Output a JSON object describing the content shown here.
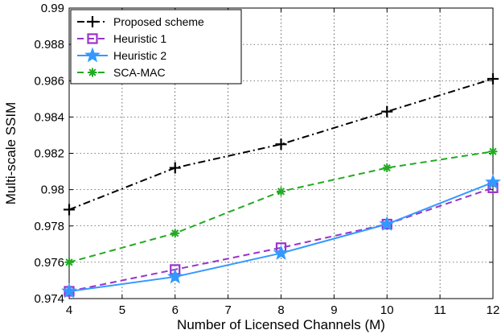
{
  "chart_data": {
    "type": "line",
    "title": "",
    "xlabel": "Number of Licensed Channels (M)",
    "ylabel": "Multi-scale SSIM",
    "xlim": [
      4,
      12
    ],
    "ylim": [
      0.974,
      0.99
    ],
    "x_ticks": [
      4,
      5,
      6,
      7,
      8,
      9,
      10,
      11,
      12
    ],
    "y_ticks": [
      0.974,
      0.976,
      0.978,
      0.98,
      0.982,
      0.984,
      0.986,
      0.988,
      0.99
    ],
    "y_tick_labels": [
      "0.974",
      "0.976",
      "0.978",
      "0.98",
      "0.982",
      "0.984",
      "0.986",
      "0.988",
      "0.99"
    ],
    "grid": true,
    "legend_position": "top-left",
    "x": [
      4,
      6,
      8,
      10,
      12
    ],
    "series": [
      {
        "name": "Proposed scheme",
        "values": [
          0.9789,
          0.9812,
          0.9825,
          0.9843,
          0.9861
        ],
        "color": "#000000",
        "dash": "dashdot",
        "marker": "plus"
      },
      {
        "name": "Heuristic 1",
        "values": [
          0.9744,
          0.9756,
          0.9768,
          0.9781,
          0.9801
        ],
        "color": "#9933cc",
        "dash": "dashed",
        "marker": "square"
      },
      {
        "name": "Heuristic 2",
        "values": [
          0.9744,
          0.9752,
          0.9765,
          0.9781,
          0.9804
        ],
        "color": "#3399ff",
        "dash": "solid",
        "marker": "star"
      },
      {
        "name": "SCA-MAC",
        "values": [
          0.976,
          0.9776,
          0.9799,
          0.9812,
          0.9821
        ],
        "color": "#22aa22",
        "dash": "dashed",
        "marker": "asterisk"
      }
    ]
  }
}
